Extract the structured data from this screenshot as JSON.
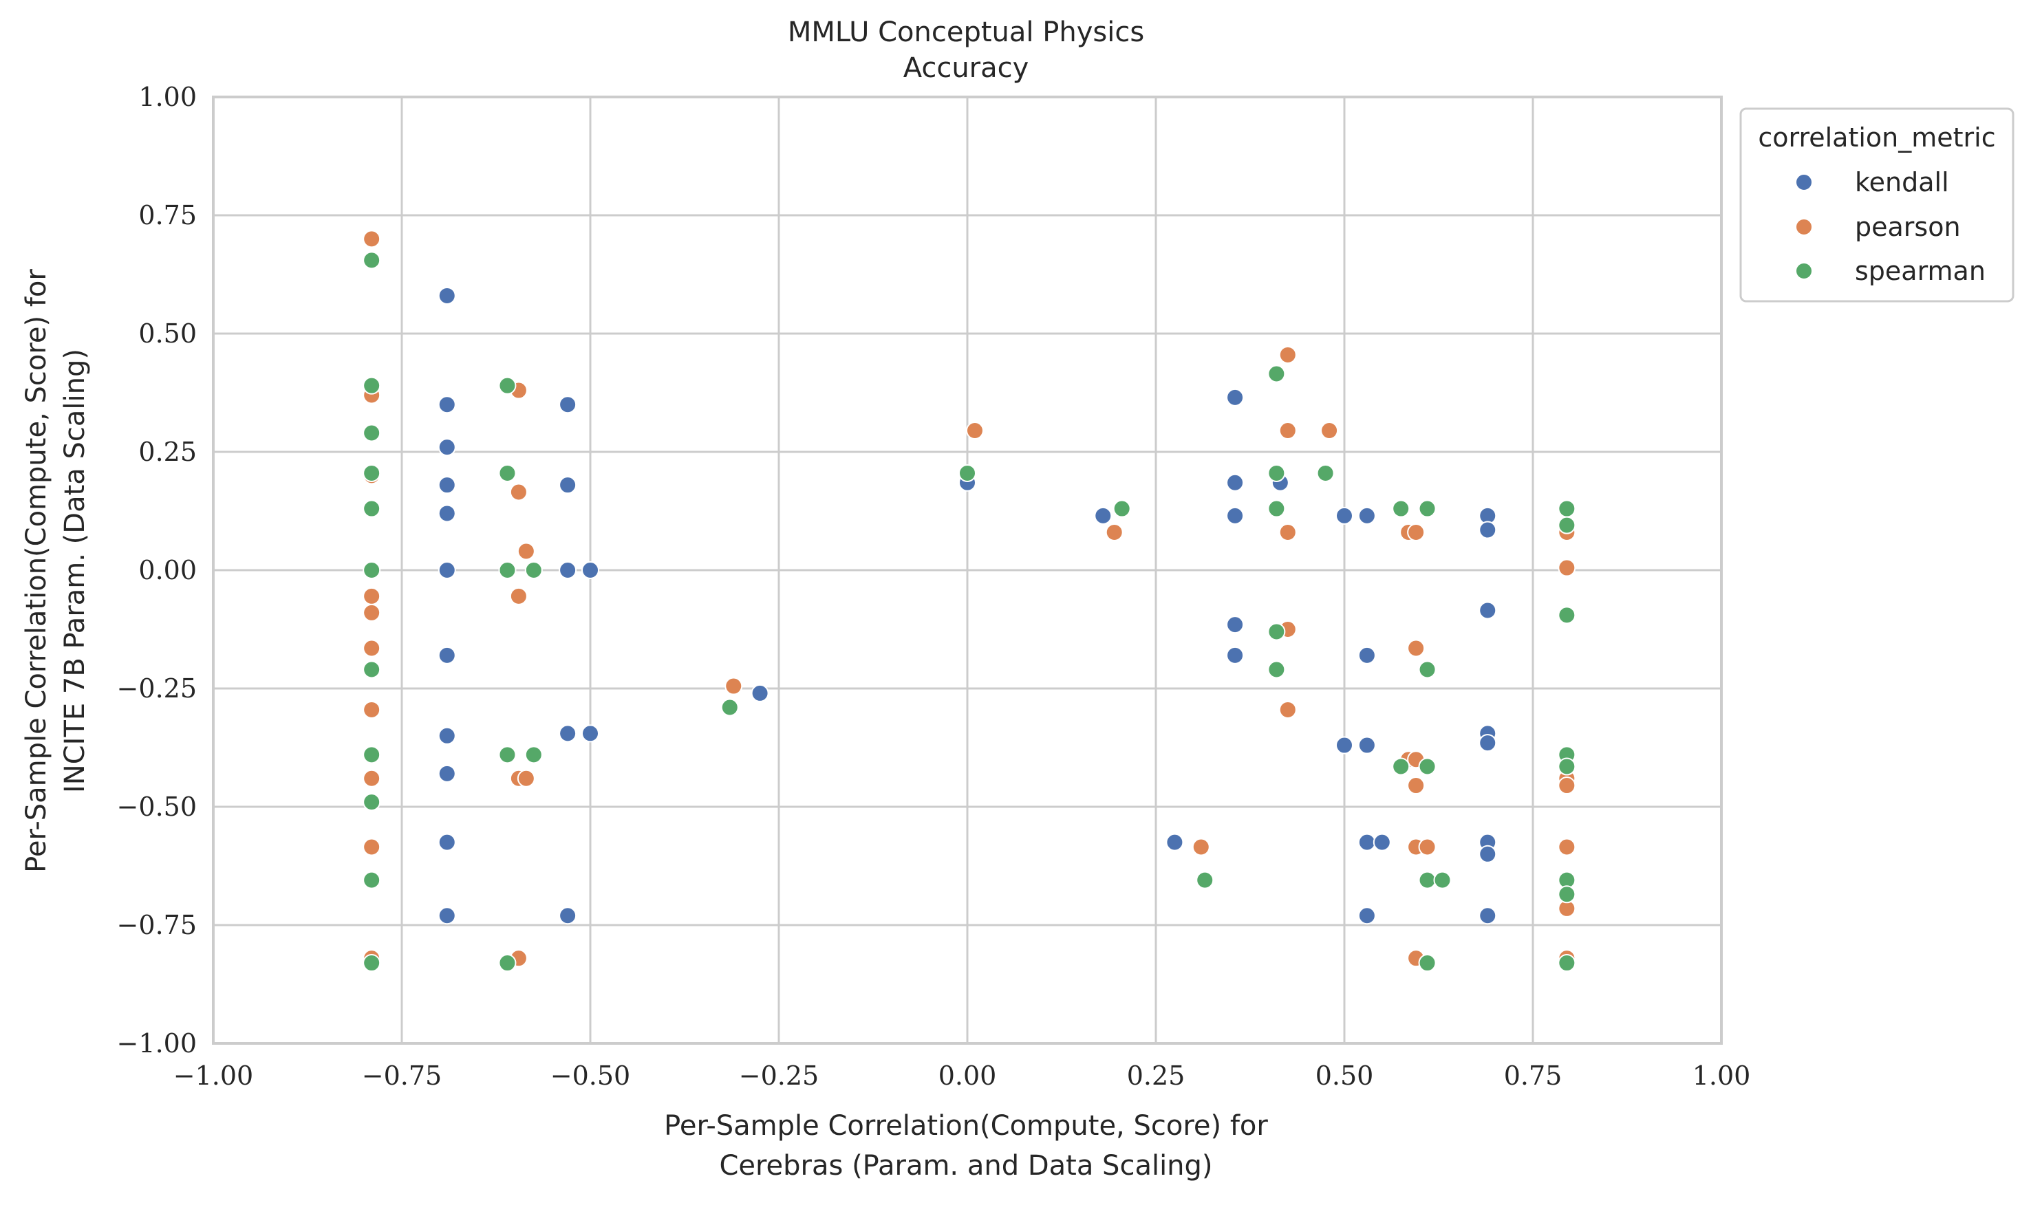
{
  "chart_data": {
    "type": "scatter",
    "title": [
      "MMLU Conceptual Physics",
      "Accuracy"
    ],
    "xlabel": [
      "Per-Sample Correlation(Compute, Score) for",
      "Cerebras (Param. and Data Scaling)"
    ],
    "ylabel": [
      "Per-Sample Correlation(Compute, Score) for",
      "INCITE 7B Param. (Data Scaling)"
    ],
    "xlim": [
      -1.0,
      1.0
    ],
    "ylim": [
      -1.0,
      1.0
    ],
    "xticks": [
      -1.0,
      -0.75,
      -0.5,
      -0.25,
      0.0,
      0.25,
      0.5,
      0.75,
      1.0
    ],
    "yticks": [
      -1.0,
      -0.75,
      -0.5,
      -0.25,
      0.0,
      0.25,
      0.5,
      0.75,
      1.0
    ],
    "xtick_labels": [
      "−1.00",
      "−0.75",
      "−0.50",
      "−0.25",
      "0.00",
      "0.25",
      "0.50",
      "0.75",
      "1.00"
    ],
    "ytick_labels": [
      "−1.00",
      "−0.75",
      "−0.50",
      "−0.25",
      "0.00",
      "0.25",
      "0.50",
      "0.75",
      "1.00"
    ],
    "grid": true,
    "legend": {
      "title": "correlation_metric",
      "placement": "outside-top-right"
    },
    "series": [
      {
        "name": "kendall",
        "color": "#4c72b0",
        "points": [
          [
            -0.69,
            0.58
          ],
          [
            -0.69,
            0.35
          ],
          [
            -0.69,
            0.26
          ],
          [
            -0.69,
            0.18
          ],
          [
            -0.69,
            0.12
          ],
          [
            -0.69,
            0.0
          ],
          [
            -0.69,
            -0.18
          ],
          [
            -0.69,
            -0.35
          ],
          [
            -0.69,
            -0.43
          ],
          [
            -0.69,
            -0.575
          ],
          [
            -0.69,
            -0.73
          ],
          [
            -0.53,
            0.35
          ],
          [
            -0.53,
            0.18
          ],
          [
            -0.53,
            0.0
          ],
          [
            -0.5,
            0.0
          ],
          [
            -0.53,
            -0.345
          ],
          [
            -0.5,
            -0.345
          ],
          [
            -0.53,
            -0.73
          ],
          [
            -0.275,
            -0.26
          ],
          [
            0.0,
            0.185
          ],
          [
            0.18,
            0.115
          ],
          [
            0.275,
            -0.575
          ],
          [
            0.355,
            0.365
          ],
          [
            0.355,
            0.185
          ],
          [
            0.355,
            0.115
          ],
          [
            0.355,
            -0.115
          ],
          [
            0.355,
            -0.18
          ],
          [
            0.415,
            0.185
          ],
          [
            0.5,
            0.115
          ],
          [
            0.53,
            0.115
          ],
          [
            0.53,
            -0.18
          ],
          [
            0.5,
            -0.37
          ],
          [
            0.53,
            -0.37
          ],
          [
            0.53,
            -0.575
          ],
          [
            0.55,
            -0.575
          ],
          [
            0.53,
            -0.73
          ],
          [
            0.69,
            0.115
          ],
          [
            0.69,
            0.085
          ],
          [
            0.69,
            -0.085
          ],
          [
            0.69,
            -0.345
          ],
          [
            0.69,
            -0.365
          ],
          [
            0.69,
            -0.575
          ],
          [
            0.69,
            -0.6
          ],
          [
            0.69,
            -0.73
          ]
        ]
      },
      {
        "name": "pearson",
        "color": "#dd8452",
        "points": [
          [
            -0.79,
            0.7
          ],
          [
            -0.79,
            0.38
          ],
          [
            -0.79,
            0.37
          ],
          [
            -0.79,
            0.2
          ],
          [
            -0.79,
            0.13
          ],
          [
            -0.79,
            -0.055
          ],
          [
            -0.79,
            -0.09
          ],
          [
            -0.79,
            -0.165
          ],
          [
            -0.79,
            -0.295
          ],
          [
            -0.79,
            -0.44
          ],
          [
            -0.79,
            -0.585
          ],
          [
            -0.79,
            -0.82
          ],
          [
            -0.595,
            0.38
          ],
          [
            -0.595,
            0.165
          ],
          [
            -0.585,
            0.04
          ],
          [
            -0.595,
            -0.055
          ],
          [
            -0.595,
            -0.44
          ],
          [
            -0.585,
            -0.44
          ],
          [
            -0.595,
            -0.82
          ],
          [
            -0.31,
            -0.245
          ],
          [
            0.01,
            0.295
          ],
          [
            0.195,
            0.08
          ],
          [
            0.31,
            -0.585
          ],
          [
            0.425,
            0.455
          ],
          [
            0.425,
            0.295
          ],
          [
            0.48,
            0.295
          ],
          [
            0.425,
            0.08
          ],
          [
            0.425,
            -0.125
          ],
          [
            0.425,
            -0.295
          ],
          [
            0.585,
            0.08
          ],
          [
            0.595,
            0.08
          ],
          [
            0.595,
            -0.165
          ],
          [
            0.585,
            -0.4
          ],
          [
            0.595,
            -0.4
          ],
          [
            0.595,
            -0.455
          ],
          [
            0.595,
            -0.585
          ],
          [
            0.61,
            -0.585
          ],
          [
            0.595,
            -0.82
          ],
          [
            0.795,
            0.08
          ],
          [
            0.795,
            0.005
          ],
          [
            0.795,
            -0.44
          ],
          [
            0.795,
            -0.455
          ],
          [
            0.795,
            -0.585
          ],
          [
            0.795,
            -0.715
          ],
          [
            0.795,
            -0.82
          ]
        ]
      },
      {
        "name": "spearman",
        "color": "#55a868",
        "points": [
          [
            -0.79,
            0.655
          ],
          [
            -0.79,
            0.39
          ],
          [
            -0.79,
            0.29
          ],
          [
            -0.79,
            0.205
          ],
          [
            -0.79,
            0.13
          ],
          [
            -0.79,
            0.0
          ],
          [
            -0.79,
            -0.21
          ],
          [
            -0.79,
            -0.39
          ],
          [
            -0.79,
            -0.49
          ],
          [
            -0.79,
            -0.655
          ],
          [
            -0.79,
            -0.83
          ],
          [
            -0.61,
            0.39
          ],
          [
            -0.61,
            0.205
          ],
          [
            -0.61,
            0.0
          ],
          [
            -0.575,
            0.0
          ],
          [
            -0.61,
            -0.39
          ],
          [
            -0.575,
            -0.39
          ],
          [
            -0.61,
            -0.83
          ],
          [
            -0.315,
            -0.29
          ],
          [
            0.0,
            0.205
          ],
          [
            0.205,
            0.13
          ],
          [
            0.315,
            -0.655
          ],
          [
            0.41,
            0.415
          ],
          [
            0.41,
            0.205
          ],
          [
            0.475,
            0.205
          ],
          [
            0.41,
            0.13
          ],
          [
            0.41,
            -0.13
          ],
          [
            0.41,
            -0.21
          ],
          [
            0.575,
            0.13
          ],
          [
            0.61,
            0.13
          ],
          [
            0.61,
            -0.21
          ],
          [
            0.575,
            -0.415
          ],
          [
            0.61,
            -0.415
          ],
          [
            0.61,
            -0.655
          ],
          [
            0.63,
            -0.655
          ],
          [
            0.61,
            -0.83
          ],
          [
            0.795,
            0.13
          ],
          [
            0.795,
            0.095
          ],
          [
            0.795,
            -0.095
          ],
          [
            0.795,
            -0.39
          ],
          [
            0.795,
            -0.415
          ],
          [
            0.795,
            -0.655
          ],
          [
            0.795,
            -0.685
          ],
          [
            0.795,
            -0.83
          ]
        ]
      }
    ]
  }
}
